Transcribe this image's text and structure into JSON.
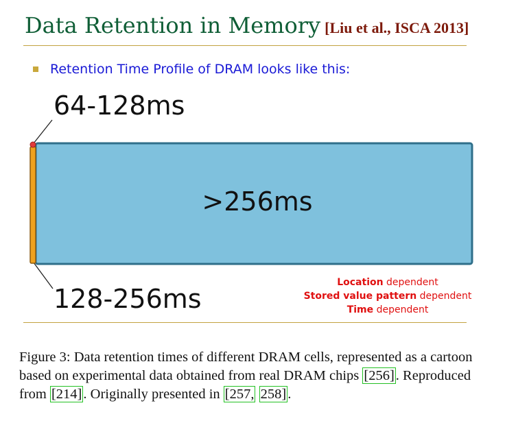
{
  "title": {
    "main": "Data Retention in Memory",
    "reference": "[Liu et al., ISCA 2013]"
  },
  "bullet": "Retention Time Profile of DRAM looks like this:",
  "diagram": {
    "label_top": "64-128ms",
    "label_center": ">256ms",
    "label_bottom": "128-256ms",
    "colors": {
      "main_block": "#7fc1dd",
      "main_border": "#2f6f8a",
      "thin_strip": "#f0a21e",
      "red_dot": "#e23b3b"
    }
  },
  "dependencies": [
    {
      "bold": "Location",
      "rest": " dependent"
    },
    {
      "bold": "Stored value pattern",
      "rest": " dependent"
    },
    {
      "bold": "Time",
      "rest": " dependent"
    }
  ],
  "caption": {
    "part1": "Figure 3: Data retention times of different DRAM cells, represented as a cartoon based on experimental data obtained from real DRAM chips ",
    "cite1": "[256]",
    "part2": ". Reproduced from ",
    "cite2": "[214]",
    "part3": ". Originally presented in ",
    "cite3a": "[257,",
    "cite3b": "258]",
    "part4": "."
  }
}
